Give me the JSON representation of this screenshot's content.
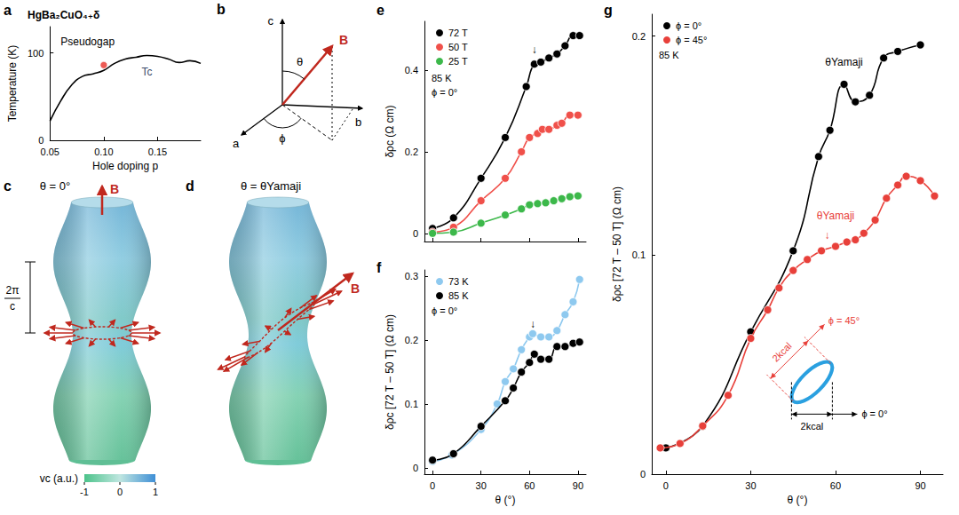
{
  "chart_data": [
    {
      "panel": "a",
      "type": "line",
      "title": "HgBa₂CuO₄₊δ",
      "x_label": "Hole doping p",
      "y_label": "Temperature (K)",
      "xlim": [
        0.05,
        0.19
      ],
      "xticks": [
        0.05,
        {
          "value": 0.1,
          "label": "0.10"
        },
        0.15
      ],
      "ylim": [
        0,
        130
      ],
      "yticks": [
        0,
        100
      ],
      "grid": false,
      "series": [
        {
          "type": "line",
          "marker": "none",
          "color": "#000000",
          "x": [
            0.05,
            0.06,
            0.07,
            0.08,
            0.09,
            0.1,
            0.11,
            0.12,
            0.13,
            0.14,
            0.15,
            0.16,
            0.17,
            0.18,
            0.19
          ],
          "values": [
            22,
            45,
            63,
            73,
            76,
            80,
            88,
            93,
            95,
            97,
            96,
            93,
            89,
            91,
            88
          ]
        },
        {
          "type": "scatter",
          "marker": "circle",
          "color": "#e8322b",
          "x": [
            0.1
          ],
          "values": [
            86
          ]
        }
      ],
      "annotations": [
        {
          "text": "Pseudogap",
          "x": 0.085,
          "y": 113,
          "color": "#000000"
        },
        {
          "text": "Tc",
          "x": 0.14,
          "y": 78,
          "color": "#3a4a6a"
        }
      ]
    },
    {
      "panel": "e",
      "type": "line",
      "y_label": "δρc (Ω cm)",
      "xlim": [
        -5,
        95
      ],
      "xticks": [
        0,
        30,
        60,
        90
      ],
      "ylim": [
        -0.02,
        0.52
      ],
      "yticks": [
        0,
        0.2,
        0.4
      ],
      "grid": false,
      "tick_labels": "y",
      "legend": "upper left",
      "marker": "circle",
      "legend_notes": [
        "85 K",
        "ϕ = 0°"
      ],
      "series": [
        {
          "name": "72 T",
          "color": "#000000",
          "x": [
            0,
            13,
            30,
            45,
            58,
            63,
            67,
            72,
            77,
            82,
            87,
            91
          ],
          "values": [
            0.012,
            0.038,
            0.135,
            0.235,
            0.36,
            0.415,
            0.42,
            0.43,
            0.44,
            0.46,
            0.485,
            0.485
          ]
        },
        {
          "name": "50 T",
          "color": "#f0504a",
          "x": [
            0,
            13,
            30,
            45,
            55,
            60,
            65,
            68,
            72,
            77,
            80,
            85,
            90
          ],
          "values": [
            0.003,
            0.015,
            0.08,
            0.135,
            0.2,
            0.235,
            0.245,
            0.255,
            0.255,
            0.265,
            0.27,
            0.29,
            0.29
          ]
        },
        {
          "name": "25 T",
          "color": "#3cb84a",
          "x": [
            0,
            13,
            30,
            45,
            55,
            60,
            65,
            70,
            75,
            80,
            85,
            90
          ],
          "values": [
            0,
            0.003,
            0.025,
            0.045,
            0.06,
            0.07,
            0.073,
            0.075,
            0.08,
            0.085,
            0.09,
            0.092
          ]
        }
      ],
      "annotations": [
        {
          "text": "↓",
          "x": 63,
          "y": 0.45,
          "color": "#000000"
        }
      ]
    },
    {
      "panel": "f",
      "type": "line",
      "x_label": "θ (°)",
      "y_label": "δρc [72 T – 50 T] (Ω cm)",
      "xlim": [
        -5,
        95
      ],
      "xticks": [
        0,
        30,
        60,
        90
      ],
      "ylim": [
        -0.01,
        0.31
      ],
      "yticks": [
        0,
        0.1,
        0.2,
        0.3
      ],
      "grid": false,
      "legend": "upper left",
      "marker": "circle",
      "legend_notes": [
        "ϕ = 0°"
      ],
      "series": [
        {
          "name": "73 K",
          "color": "#8ec9ef",
          "x": [
            0,
            12,
            30,
            40,
            45,
            50,
            55,
            60,
            62,
            67,
            72,
            77,
            82,
            87,
            91
          ],
          "values": [
            0.01,
            0.02,
            0.06,
            0.1,
            0.135,
            0.155,
            0.185,
            0.205,
            0.21,
            0.205,
            0.205,
            0.215,
            0.24,
            0.26,
            0.295
          ]
        },
        {
          "name": "85 K",
          "color": "#000000",
          "x": [
            0,
            13,
            30,
            45,
            50,
            55,
            60,
            63,
            67,
            72,
            77,
            82,
            87,
            91
          ],
          "values": [
            0.012,
            0.022,
            0.065,
            0.105,
            0.125,
            0.15,
            0.165,
            0.178,
            0.17,
            0.17,
            0.19,
            0.19,
            0.195,
            0.197
          ]
        }
      ],
      "annotations": [
        {
          "text": "↓",
          "x": 62,
          "y": 0.225,
          "color": "#000000"
        }
      ]
    },
    {
      "panel": "g",
      "type": "line",
      "x_label": "θ (°)",
      "y_label": "δρc [72 T – 50 T] (Ω cm)",
      "xlim": [
        -5,
        98
      ],
      "xticks": [
        0,
        30,
        60,
        90
      ],
      "ylim": [
        0,
        0.21
      ],
      "yticks": [
        0,
        0.1,
        0.2
      ],
      "grid": false,
      "legend": "upper left",
      "marker": "circle",
      "legend_notes": [
        "85 K"
      ],
      "series": [
        {
          "name": "ϕ = 0°",
          "color": "#000000",
          "x": [
            0,
            13,
            30,
            45,
            54,
            58,
            63,
            67,
            72,
            77,
            82,
            90
          ],
          "values": [
            0.012,
            0.022,
            0.065,
            0.102,
            0.145,
            0.157,
            0.178,
            0.17,
            0.173,
            0.19,
            0.193,
            0.196
          ]
        },
        {
          "name": "ϕ = 45°",
          "color": "#e8403a",
          "x": [
            -2,
            5,
            13,
            22,
            30,
            36,
            40,
            45,
            50,
            55,
            60,
            64,
            67,
            70,
            74,
            78,
            82,
            85,
            90,
            95
          ],
          "values": [
            0.012,
            0.014,
            0.022,
            0.036,
            0.062,
            0.075,
            0.085,
            0.093,
            0.098,
            0.102,
            0.104,
            0.106,
            0.107,
            0.11,
            0.116,
            0.126,
            0.132,
            0.136,
            0.134,
            0.127
          ]
        }
      ],
      "annotations": [
        {
          "text": "θYamaji",
          "x": 63,
          "y": 0.188,
          "color": "#000000"
        },
        {
          "text": "θYamaji",
          "x": 60,
          "y": 0.118,
          "color": "#e8403a"
        },
        {
          "text": "↓",
          "x": 57,
          "y": 0.109,
          "color": "#e8403a"
        }
      ],
      "inset": {
        "width_label": "2kcal",
        "angle_labels": [
          "ϕ = 0°",
          "ϕ = 45°"
        ],
        "color": "#2aa0e0"
      }
    }
  ],
  "diagrams": {
    "b": {
      "panel": "b",
      "axis_labels": [
        "c",
        "a",
        "b"
      ],
      "field": "B",
      "field_color": "#c0281e",
      "angles": [
        "θ",
        "ϕ"
      ]
    },
    "c": {
      "panel": "c",
      "title": "θ = 0°",
      "field": "B",
      "field_color": "#c0281e",
      "bracket": [
        "2π",
        "c"
      ],
      "colorbar": {
        "label": "vc (a.u.)",
        "range": [
          -1,
          1
        ],
        "ticks": [
          -1,
          0,
          1
        ]
      }
    },
    "d": {
      "panel": "d",
      "title": "θ = θYamaji",
      "field": "B",
      "field_color": "#c0281e"
    }
  }
}
